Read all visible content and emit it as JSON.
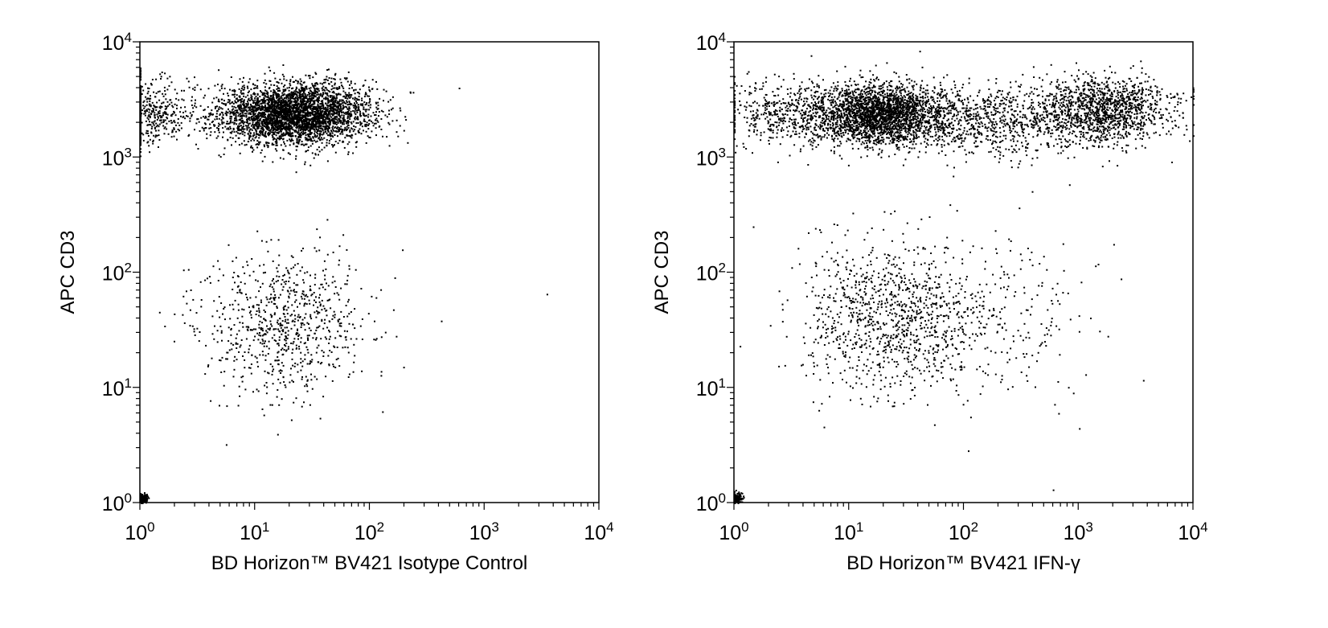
{
  "chart_data": [
    {
      "type": "scatter",
      "title": "",
      "xlabel": "BD Horizon™ BV421 Isotype Control",
      "ylabel": "APC CD3",
      "xscale": "log",
      "yscale": "log",
      "xlim": [
        1,
        10000
      ],
      "ylim": [
        1,
        10000
      ],
      "xticks": [
        {
          "base": "10",
          "exp": "0"
        },
        {
          "base": "10",
          "exp": "1"
        },
        {
          "base": "10",
          "exp": "2"
        },
        {
          "base": "10",
          "exp": "3"
        },
        {
          "base": "10",
          "exp": "4"
        }
      ],
      "yticks": [
        {
          "base": "10",
          "exp": "0"
        },
        {
          "base": "10",
          "exp": "1"
        },
        {
          "base": "10",
          "exp": "2"
        },
        {
          "base": "10",
          "exp": "3"
        },
        {
          "base": "10",
          "exp": "4"
        }
      ],
      "grid": false,
      "populations": [
        {
          "x_center": 22,
          "y_center": 2400,
          "x_spread_log10": 0.33,
          "y_spread_log10": 0.13,
          "count": 3600
        },
        {
          "x_center": 1.1,
          "y_center": 2400,
          "x_spread_log10": 0.25,
          "y_spread_log10": 0.14,
          "count": 500
        },
        {
          "x_center": 18,
          "y_center": 35,
          "x_spread_log10": 0.35,
          "y_spread_log10": 0.32,
          "count": 800
        },
        {
          "x_center": 1.05,
          "y_center": 1.1,
          "x_spread_log10": 0.02,
          "y_spread_log10": 0.02,
          "count": 150
        }
      ],
      "outlier_points": [
        [
          600,
          4000
        ],
        [
          3500,
          65
        ],
        [
          420,
          38
        ],
        [
          170,
          28
        ]
      ]
    },
    {
      "type": "scatter",
      "title": "",
      "xlabel": "BD Horizon™ BV421 IFN-γ",
      "ylabel": "APC CD3",
      "xscale": "log",
      "yscale": "log",
      "xlim": [
        1,
        10000
      ],
      "ylim": [
        1,
        10000
      ],
      "xticks": [
        {
          "base": "10",
          "exp": "0"
        },
        {
          "base": "10",
          "exp": "1"
        },
        {
          "base": "10",
          "exp": "2"
        },
        {
          "base": "10",
          "exp": "3"
        },
        {
          "base": "10",
          "exp": "4"
        }
      ],
      "yticks": [
        {
          "base": "10",
          "exp": "0"
        },
        {
          "base": "10",
          "exp": "1"
        },
        {
          "base": "10",
          "exp": "2"
        },
        {
          "base": "10",
          "exp": "3"
        },
        {
          "base": "10",
          "exp": "4"
        }
      ],
      "grid": false,
      "populations": [
        {
          "x_center": 18,
          "y_center": 2400,
          "x_spread_log10": 0.28,
          "y_spread_log10": 0.13,
          "count": 2400
        },
        {
          "x_center": 1600,
          "y_center": 2600,
          "x_spread_log10": 0.3,
          "y_spread_log10": 0.15,
          "count": 1300
        },
        {
          "x_center": 150,
          "y_center": 2100,
          "x_spread_log10": 0.45,
          "y_spread_log10": 0.15,
          "count": 900
        },
        {
          "x_center": 3,
          "y_center": 2400,
          "x_spread_log10": 0.3,
          "y_spread_log10": 0.14,
          "count": 500
        },
        {
          "x_center": 22,
          "y_center": 40,
          "x_spread_log10": 0.38,
          "y_spread_log10": 0.33,
          "count": 1000
        },
        {
          "x_center": 200,
          "y_center": 40,
          "x_spread_log10": 0.45,
          "y_spread_log10": 0.35,
          "count": 260
        },
        {
          "x_center": 1.05,
          "y_center": 1.1,
          "x_spread_log10": 0.02,
          "y_spread_log10": 0.02,
          "count": 150
        }
      ],
      "outlier_points": [
        [
          1800,
          28
        ],
        [
          900,
          9
        ],
        [
          600,
          1.3
        ]
      ]
    }
  ]
}
